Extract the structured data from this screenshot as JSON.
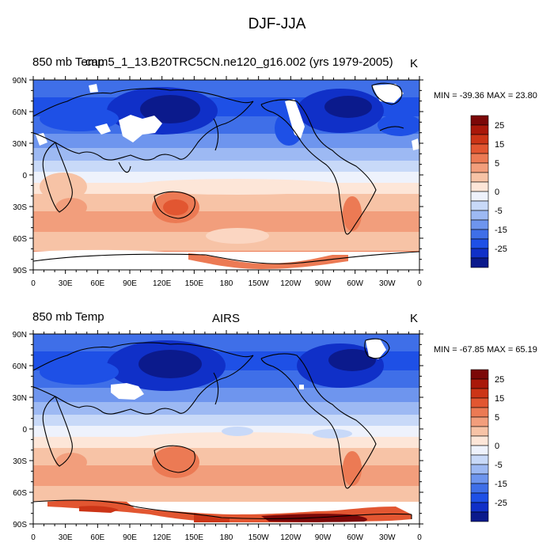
{
  "figure": {
    "title": "DJF-JJA"
  },
  "colorbar": {
    "colors": [
      "#0b1a8c",
      "#1030c8",
      "#1e50e6",
      "#3f6fe8",
      "#6e95ee",
      "#9db9f3",
      "#c8d9f8",
      "#eef2fc",
      "#fde6d8",
      "#f7c3a6",
      "#f29e7c",
      "#ec7a54",
      "#e25631",
      "#cc3517",
      "#a9180a",
      "#7c0808"
    ],
    "labels": [
      "25",
      "15",
      "5",
      "0",
      "-5",
      "-15",
      "-25"
    ]
  },
  "panels": [
    {
      "left_label": "850 mb Temp",
      "center_label": "cam5_1_13.B20TRC5CN.ne120_g16.002 (yrs 1979-2005)",
      "units": "K",
      "minmax": "MIN = -39.36 MAX =  23.80",
      "lat_labels": [
        "90N",
        "60N",
        "30N",
        "0",
        "30S",
        "60S",
        "90S"
      ],
      "lon_labels": [
        "0",
        "30E",
        "60E",
        "90E",
        "120E",
        "150E",
        "180",
        "150W",
        "120W",
        "90W",
        "60W",
        "30W",
        "0"
      ]
    },
    {
      "left_label": "850 mb Temp",
      "center_label": "AIRS",
      "units": "K",
      "minmax": "MIN = -67.85 MAX =  65.19",
      "lat_labels": [
        "90N",
        "60N",
        "30N",
        "0",
        "30S",
        "60S",
        "90S"
      ],
      "lon_labels": [
        "0",
        "30E",
        "60E",
        "90E",
        "120E",
        "150E",
        "180",
        "150W",
        "120W",
        "90W",
        "60W",
        "30W",
        "0"
      ]
    }
  ]
}
